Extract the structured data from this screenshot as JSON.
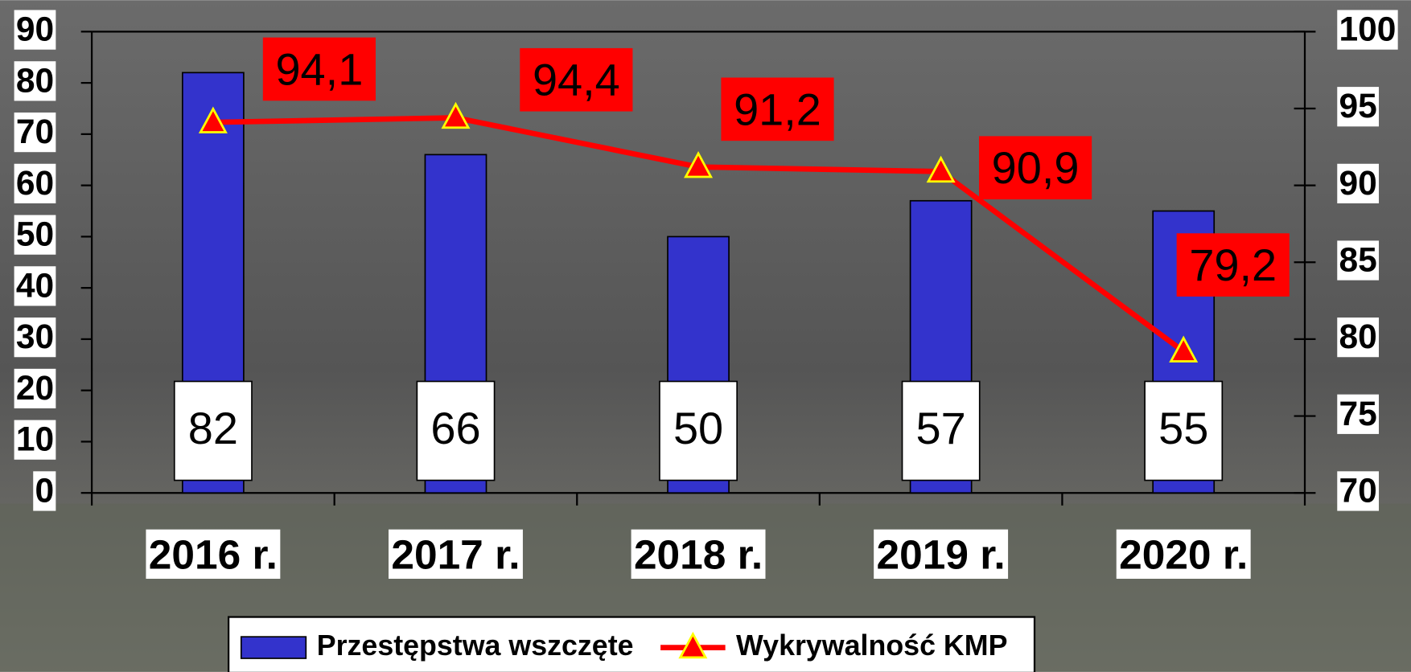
{
  "chart_data": {
    "type": "bar_line",
    "categories": [
      "2016 r.",
      "2017 r.",
      "2018 r.",
      "2019 r.",
      "2020 r."
    ],
    "series": [
      {
        "name": "Przestępstwa wszczęte",
        "type": "bar",
        "color": "#3333cc",
        "values": [
          82,
          66,
          50,
          57,
          55
        ]
      },
      {
        "name": "Wykrywalność KMP",
        "type": "line",
        "axis": "y2",
        "color": "#ff0000",
        "marker_color": "#ffff00",
        "values": [
          94.1,
          94.4,
          91.2,
          90.9,
          79.2
        ],
        "value_labels": [
          "94,1",
          "94,4",
          "91,2",
          "90,9",
          "79,2"
        ]
      }
    ],
    "ylim": [
      0,
      90
    ],
    "yticks": [
      0,
      10,
      20,
      30,
      40,
      50,
      60,
      70,
      80,
      90
    ],
    "y2lim": [
      70,
      100
    ],
    "y2ticks": [
      70,
      75,
      80,
      85,
      90,
      95,
      100
    ],
    "legend": "bottom"
  }
}
